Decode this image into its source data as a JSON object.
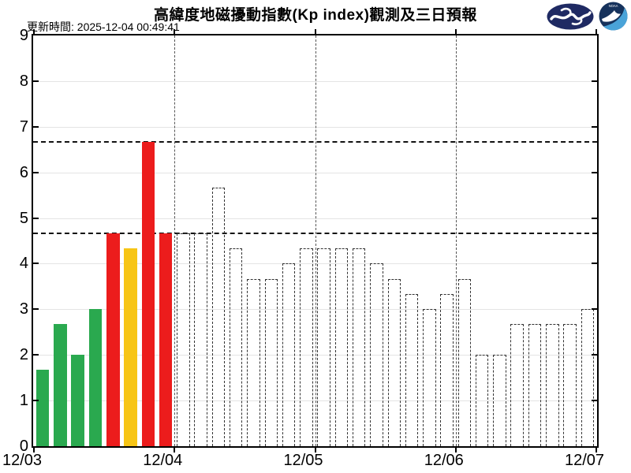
{
  "header": {
    "title": "高緯度地磁擾動指數(Kp index)觀測及三日預報",
    "update_time": "更新時間: 2025-12-04 00:49:41",
    "logo_icons": [
      "space-weather-swoosh-logo",
      "noaa-logo"
    ]
  },
  "chart_data": {
    "type": "bar",
    "title": "高緯度地磁擾動指數(Kp index)觀測及三日預報",
    "xlabel": "",
    "ylabel": "",
    "ylim": [
      0,
      9
    ],
    "grid": true,
    "ytick_labels": [
      "0",
      "1",
      "2",
      "3",
      "4",
      "5",
      "6",
      "7",
      "8",
      "9"
    ],
    "xtick_labels": [
      "12/03",
      "12/04",
      "12/05",
      "12/06",
      "12/07"
    ],
    "bars_per_day": 8,
    "threshold_lines": [
      4.67,
      6.67
    ],
    "colors": {
      "quiet_green": "#2aa94f",
      "active_yellow": "#f7c515",
      "storm_red": "#ec1c1c",
      "forecast_outline": "#333333"
    },
    "series": [
      {
        "name": "observed",
        "style": "solid",
        "day": "12/03",
        "values": [
          1.67,
          2.67,
          2.0,
          3.0,
          4.67,
          4.33,
          6.67,
          4.67
        ],
        "colors": [
          "#2aa94f",
          "#2aa94f",
          "#2aa94f",
          "#2aa94f",
          "#ec1c1c",
          "#f7c515",
          "#ec1c1c",
          "#ec1c1c"
        ]
      },
      {
        "name": "forecast",
        "style": "dashed-outline",
        "days": [
          "12/04",
          "12/05",
          "12/06"
        ],
        "values": [
          4.67,
          4.67,
          5.67,
          4.33,
          3.67,
          3.67,
          4.0,
          4.33,
          4.33,
          4.33,
          4.33,
          4.0,
          3.67,
          3.33,
          3.0,
          3.33,
          3.67,
          2.0,
          2.0,
          2.67,
          2.67,
          2.67,
          2.67,
          3.0
        ]
      }
    ]
  }
}
